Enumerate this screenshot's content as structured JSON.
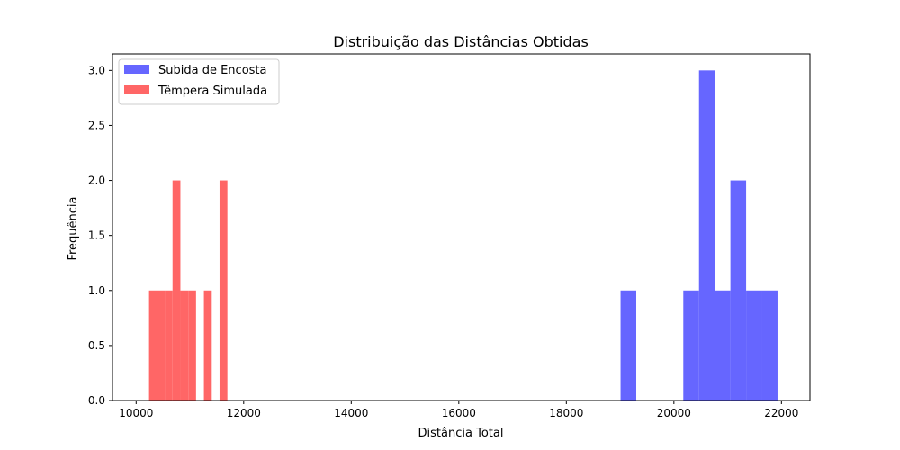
{
  "chart_data": {
    "type": "histogram",
    "title": "Distribuição das Distâncias Obtidas",
    "xlabel": "Distância Total",
    "ylabel": "Frequência",
    "xlim": [
      9560,
      22530
    ],
    "ylim": [
      0,
      3.15
    ],
    "x_ticks": [
      10000,
      12000,
      14000,
      16000,
      18000,
      20000,
      22000
    ],
    "x_tick_labels": [
      "10000",
      "12000",
      "14000",
      "16000",
      "18000",
      "20000",
      "22000"
    ],
    "y_ticks": [
      0,
      0.5,
      1,
      1.5,
      2,
      2.5,
      3
    ],
    "y_tick_labels": [
      "0.0",
      "0.5",
      "1.0",
      "1.5",
      "2.0",
      "2.5",
      "3.0"
    ],
    "grid": false,
    "legend_position": "top-left",
    "series": [
      {
        "name": "Subida de Encosta",
        "color": "#6666ff",
        "bins": [
          {
            "x0": 19008,
            "x1": 19300,
            "count": 1
          },
          {
            "x0": 20175,
            "x1": 20467,
            "count": 1
          },
          {
            "x0": 20467,
            "x1": 20759,
            "count": 3
          },
          {
            "x0": 20759,
            "x1": 21051,
            "count": 1
          },
          {
            "x0": 21051,
            "x1": 21343,
            "count": 2
          },
          {
            "x0": 21343,
            "x1": 21635,
            "count": 1
          },
          {
            "x0": 21635,
            "x1": 21927,
            "count": 1
          }
        ]
      },
      {
        "name": "Têmpera Simulada",
        "color": "#ff6666",
        "bins": [
          {
            "x0": 10240,
            "x1": 10386,
            "count": 1
          },
          {
            "x0": 10386,
            "x1": 10532,
            "count": 1
          },
          {
            "x0": 10532,
            "x1": 10677,
            "count": 1
          },
          {
            "x0": 10677,
            "x1": 10823,
            "count": 2
          },
          {
            "x0": 10823,
            "x1": 10969,
            "count": 1
          },
          {
            "x0": 10969,
            "x1": 11114,
            "count": 1
          },
          {
            "x0": 11260,
            "x1": 11406,
            "count": 1
          },
          {
            "x0": 11551,
            "x1": 11697,
            "count": 2
          }
        ]
      }
    ]
  }
}
